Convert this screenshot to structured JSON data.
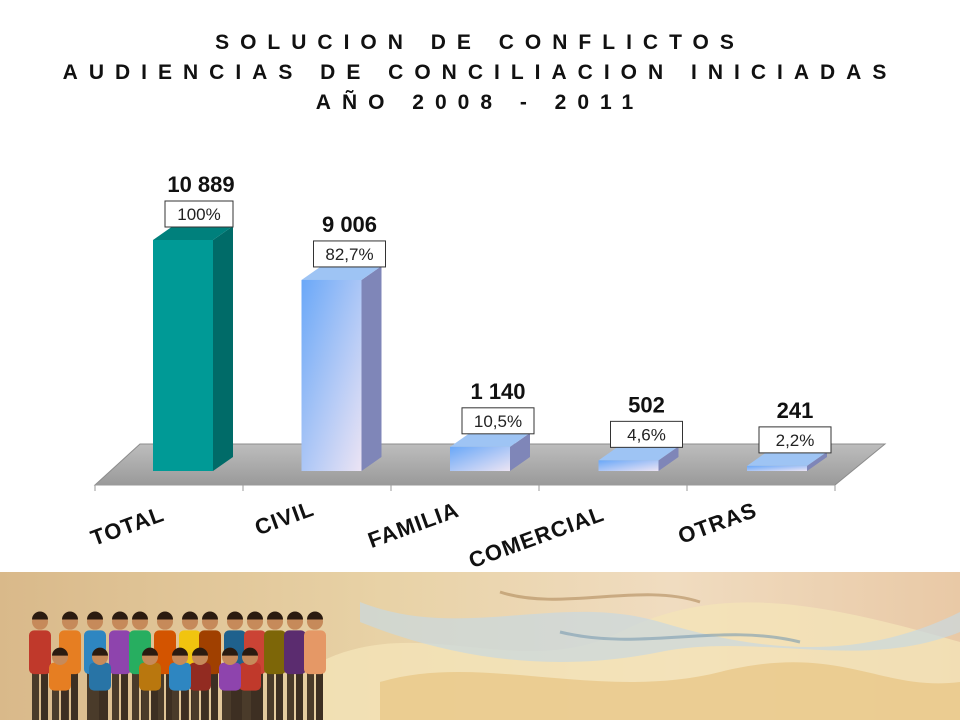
{
  "title_lines": [
    "SOLUCION DE CONFLICTOS",
    "AUDIENCIAS DE CONCILIACION INICIADAS",
    "AÑO 2008 - 2011"
  ],
  "chart_data": {
    "type": "bar",
    "title": "SOLUCION DE CONFLICTOS AUDIENCIAS DE CONCILIACION INICIADAS AÑO 2008 - 2011",
    "categories": [
      "TOTAL",
      "CIVIL",
      "FAMILIA",
      "COMERCIAL",
      "OTRAS"
    ],
    "values": [
      10889,
      9006,
      1140,
      502,
      241
    ],
    "value_labels": [
      "10 889",
      "9 006",
      "1 140",
      "502",
      "241"
    ],
    "percent_labels": [
      "100%",
      "82,7%",
      "10,5%",
      "4,6%",
      "2,2%"
    ],
    "ylim": [
      0,
      10889
    ],
    "grid": false,
    "legend": "none",
    "colors": {
      "total_front": "#009a96",
      "total_side": "#006b68",
      "total_top": "#00807c",
      "bar_front_start": "#6aa8f8",
      "bar_front_end": "#ece4f4",
      "bar_side": "#7f86b8",
      "bar_top": "#9ec4f4",
      "floor": "#a9a9a9"
    }
  }
}
